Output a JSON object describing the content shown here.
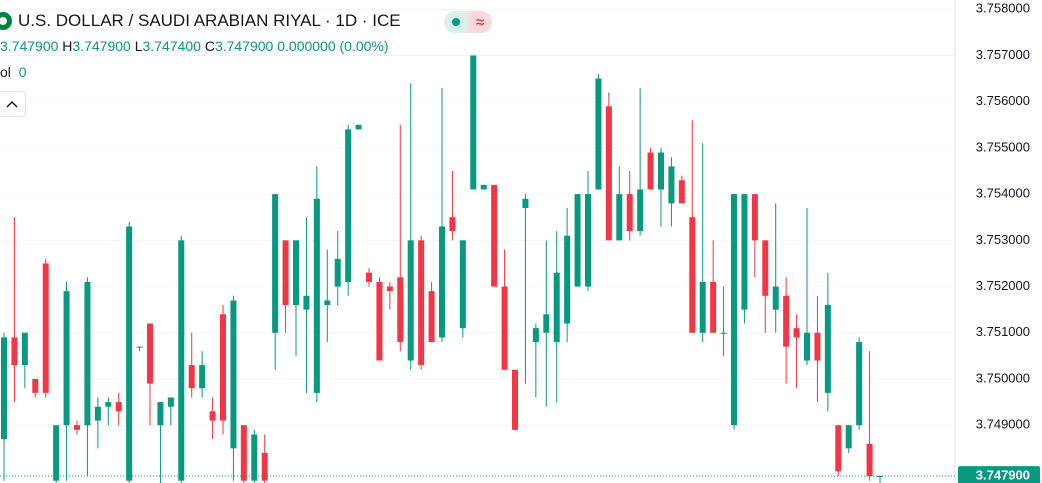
{
  "chart_data": {
    "type": "candlestick",
    "title": "U.S. DOLLAR / SAUDI ARABIAN RIYAL · 1D · ICE",
    "legend": {
      "open": "3.747900",
      "high_label": "H",
      "high": "3.747900",
      "low_label": "L",
      "low": "3.747400",
      "close_label": "C",
      "close": "3.747900",
      "change": "0.000000 (0.00%)"
    },
    "volume": {
      "label": "ol",
      "value": "0"
    },
    "status_icon": "≈",
    "up_color": "#089981",
    "down_color": "#f23645",
    "ylim": [
      3.74775,
      3.7582
    ],
    "yticks": [
      {
        "value": 3.758,
        "label": "3.758000"
      },
      {
        "value": 3.757,
        "label": "3.757000"
      },
      {
        "value": 3.756,
        "label": "3.756000"
      },
      {
        "value": 3.755,
        "label": "3.755000"
      },
      {
        "value": 3.754,
        "label": "3.754000"
      },
      {
        "value": 3.753,
        "label": "3.753000"
      },
      {
        "value": 3.752,
        "label": "3.752000"
      },
      {
        "value": 3.751,
        "label": "3.751000"
      },
      {
        "value": 3.75,
        "label": "3.750000"
      },
      {
        "value": 3.749,
        "label": "3.749000"
      }
    ],
    "grid": true,
    "last_price": {
      "value": 3.7479,
      "label": "3.747900"
    },
    "open": [
      3.7487,
      3.7509,
      3.7503,
      3.75,
      3.7525,
      3.7478,
      3.749,
      3.749,
      3.749,
      3.7491,
      3.7494,
      3.7495,
      3.7478,
      3.7507,
      3.7512,
      3.749,
      3.7494,
      3.7478,
      3.7503,
      3.7498,
      3.7493,
      3.7514,
      3.7485,
      3.749,
      3.7478,
      3.7484,
      3.751,
      3.753,
      3.7516,
      3.7515,
      3.7497,
      3.7516,
      3.752,
      3.7521,
      3.7554,
      3.7523,
      3.7521,
      3.752,
      3.7522,
      3.7504,
      3.753,
      3.7519,
      3.7509,
      3.7535,
      3.7511,
      3.7541,
      3.7541,
      3.7542,
      3.752,
      3.7502,
      3.7537,
      3.7508,
      3.751,
      3.7508,
      3.7512,
      3.752,
      3.752,
      3.7541,
      3.7559,
      3.753,
      3.754,
      3.7532,
      3.7549,
      3.7541,
      3.7538,
      3.7543,
      3.7535,
      3.751,
      3.7521,
      3.751,
      3.749,
      3.7515,
      3.754,
      3.753,
      3.7515,
      3.7518,
      3.7511,
      3.7504,
      3.751,
      3.7497,
      3.749,
      3.7485,
      3.749,
      3.7486,
      3.7479
    ],
    "high": [
      3.751,
      3.7535,
      3.751,
      3.75,
      3.7526,
      3.749,
      3.7521,
      3.7491,
      3.7522,
      3.7496,
      3.7496,
      3.7497,
      3.7534,
      3.7507,
      3.7512,
      3.7495,
      3.7496,
      3.7531,
      3.751,
      3.7506,
      3.7496,
      3.7516,
      3.7518,
      3.749,
      3.7489,
      3.7488,
      3.754,
      3.753,
      3.753,
      3.7535,
      3.7546,
      3.7528,
      3.7532,
      3.7555,
      3.7555,
      3.7524,
      3.7522,
      3.7521,
      3.7555,
      3.7564,
      3.7531,
      3.7521,
      3.7563,
      3.7545,
      3.753,
      3.757,
      3.7542,
      3.7542,
      3.7528,
      3.7502,
      3.754,
      3.7512,
      3.753,
      3.7532,
      3.7537,
      3.754,
      3.7545,
      3.7566,
      3.7562,
      3.7546,
      3.7545,
      3.7563,
      3.755,
      3.755,
      3.7548,
      3.7544,
      3.7556,
      3.7551,
      3.753,
      3.752,
      3.754,
      3.754,
      3.754,
      3.753,
      3.7538,
      3.7522,
      3.7514,
      3.7537,
      3.7518,
      3.7523,
      3.749,
      3.749,
      3.7509,
      3.7506,
      3.7479
    ],
    "low": [
      3.7478,
      3.7495,
      3.7498,
      3.7496,
      3.7496,
      3.7476,
      3.7478,
      3.7488,
      3.7479,
      3.7485,
      3.749,
      3.749,
      3.7476,
      3.7506,
      3.749,
      3.7476,
      3.749,
      3.7476,
      3.7496,
      3.7496,
      3.7487,
      3.7488,
      3.7478,
      3.7477,
      3.7476,
      3.7477,
      3.7502,
      3.751,
      3.7505,
      3.7497,
      3.7495,
      3.7508,
      3.7516,
      3.7518,
      3.7554,
      3.752,
      3.7504,
      3.7515,
      3.7506,
      3.7502,
      3.7502,
      3.7508,
      3.7508,
      3.753,
      3.7509,
      3.7541,
      3.7541,
      3.752,
      3.7502,
      3.7489,
      3.7499,
      3.7496,
      3.7494,
      3.7495,
      3.7508,
      3.752,
      3.7519,
      3.7541,
      3.753,
      3.753,
      3.753,
      3.7531,
      3.7541,
      3.7533,
      3.7533,
      3.7538,
      3.751,
      3.7508,
      3.751,
      3.7505,
      3.7489,
      3.7512,
      3.7522,
      3.751,
      3.751,
      3.7499,
      3.7498,
      3.7503,
      3.7495,
      3.7493,
      3.7479,
      3.7484,
      3.7489,
      3.7478,
      3.7474
    ],
    "close": [
      3.7509,
      3.7503,
      3.751,
      3.7497,
      3.7497,
      3.749,
      3.7519,
      3.7489,
      3.7521,
      3.7494,
      3.7495,
      3.7493,
      3.7533,
      3.7507,
      3.7499,
      3.7495,
      3.7496,
      3.753,
      3.7498,
      3.7503,
      3.7491,
      3.7491,
      3.7517,
      3.7478,
      3.7488,
      3.7478,
      3.754,
      3.7516,
      3.753,
      3.7518,
      3.7539,
      3.7517,
      3.7526,
      3.7554,
      3.7555,
      3.7521,
      3.7504,
      3.7519,
      3.7508,
      3.753,
      3.7503,
      3.7508,
      3.7533,
      3.7532,
      3.753,
      3.757,
      3.7542,
      3.752,
      3.7502,
      3.7489,
      3.7539,
      3.7511,
      3.7514,
      3.7523,
      3.7531,
      3.754,
      3.754,
      3.7565,
      3.753,
      3.754,
      3.7532,
      3.7541,
      3.7541,
      3.7549,
      3.7546,
      3.7538,
      3.751,
      3.7521,
      3.751,
      3.751,
      3.754,
      3.754,
      3.753,
      3.7518,
      3.752,
      3.7507,
      3.7509,
      3.751,
      3.7504,
      3.7516,
      3.748,
      3.749,
      3.7508,
      3.7479,
      3.7479
    ]
  }
}
